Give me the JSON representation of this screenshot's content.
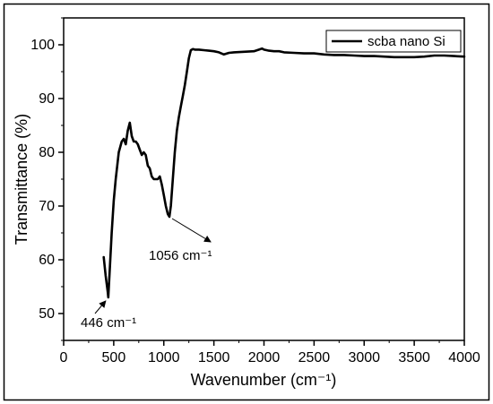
{
  "chart_data": {
    "type": "line",
    "title": "",
    "xlabel": "Wavenumber (cm⁻¹)",
    "ylabel": "Transmittance (%)",
    "xlim": [
      0,
      4000
    ],
    "ylim": [
      45,
      105
    ],
    "x_ticks": [
      0,
      500,
      1000,
      1500,
      2000,
      2500,
      3000,
      3500,
      4000
    ],
    "y_ticks": [
      50,
      60,
      70,
      80,
      90,
      100
    ],
    "grid": false,
    "legend_position": "top-right",
    "line_color": "#000000",
    "series": [
      {
        "name": "scba nano Si",
        "x": [
          400,
          420,
          440,
          446,
          460,
          480,
          500,
          520,
          550,
          580,
          600,
          620,
          640,
          660,
          680,
          700,
          720,
          740,
          760,
          780,
          800,
          820,
          840,
          860,
          880,
          900,
          920,
          940,
          960,
          980,
          1000,
          1020,
          1040,
          1056,
          1070,
          1090,
          1110,
          1130,
          1150,
          1170,
          1190,
          1210,
          1230,
          1250,
          1270,
          1290,
          1310,
          1350,
          1400,
          1450,
          1500,
          1550,
          1600,
          1650,
          1700,
          1800,
          1900,
          1950,
          1980,
          2000,
          2050,
          2100,
          2150,
          2200,
          2300,
          2400,
          2500,
          2600,
          2700,
          2800,
          2900,
          3000,
          3100,
          3200,
          3300,
          3400,
          3500,
          3600,
          3700,
          3800,
          3900,
          4000
        ],
        "y": [
          60.5,
          57,
          54,
          53,
          58,
          65,
          71,
          75,
          80,
          82,
          82.5,
          81.5,
          84,
          85.5,
          83,
          82,
          82,
          81.5,
          80.5,
          79.5,
          80,
          79.5,
          77.5,
          77,
          75.5,
          75,
          75,
          75,
          75.5,
          74,
          72,
          70,
          68.5,
          68,
          70,
          75,
          80,
          84,
          86.5,
          88.5,
          90.5,
          92.5,
          95,
          97.5,
          99,
          99.2,
          99.1,
          99.1,
          99,
          98.9,
          98.8,
          98.6,
          98.2,
          98.5,
          98.6,
          98.7,
          98.8,
          99.1,
          99.3,
          99.1,
          98.9,
          98.8,
          98.8,
          98.6,
          98.5,
          98.4,
          98.4,
          98.2,
          98.1,
          98.1,
          98,
          97.9,
          97.9,
          97.8,
          97.7,
          97.7,
          97.7,
          97.8,
          98,
          98,
          97.9,
          97.8
        ]
      }
    ],
    "annotations": [
      {
        "text": "446 cm⁻¹",
        "x": 446,
        "y": 53
      },
      {
        "text": "1056 cm⁻¹",
        "x": 1056,
        "y": 68
      }
    ]
  }
}
